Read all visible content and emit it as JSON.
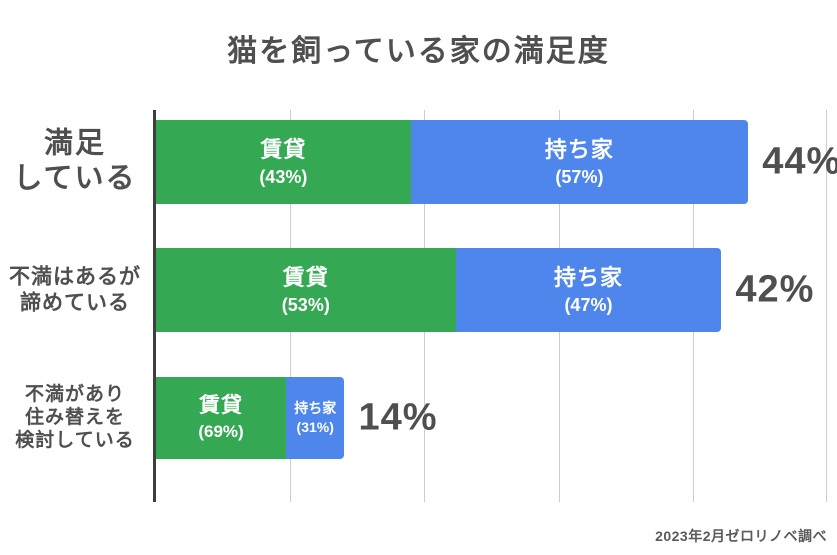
{
  "title": "猫を飼っている家の満足度",
  "source": "2023年2月ゼロリノベ調べ",
  "colors": {
    "rent_green": "#34A853",
    "own_blue": "#4E86EC",
    "text_gray": "#4F4F4F",
    "grid_gray": "#CCCCCC",
    "axis_gray": "#3F3F3F"
  },
  "axis": {
    "max_percent": 50,
    "gridline_interval_percent": 10
  },
  "chart_data": {
    "type": "bar",
    "orientation": "horizontal",
    "stacked": true,
    "title": "猫を飼っている家の満足度",
    "categories": [
      "満足している",
      "不満はあるが諦めている",
      "不満があり住み替えを検討している"
    ],
    "series": [
      {
        "name": "賃貸",
        "values": [
          43,
          53,
          69
        ],
        "color": "#34A853",
        "unit": "% within group"
      },
      {
        "name": "持ち家",
        "values": [
          57,
          47,
          31
        ],
        "color": "#4E86EC",
        "unit": "% within group"
      }
    ],
    "totals_percent": [
      44,
      42,
      14
    ],
    "xlim": [
      0,
      50
    ],
    "grid": true,
    "legend_position": "none",
    "source": "2023年2月ゼロリノベ調べ"
  },
  "rows": [
    {
      "label_lines": {
        "0": "満足",
        "1": "している"
      },
      "total_label": "44%",
      "total_value": 44,
      "segments": [
        {
          "name": "賃貸",
          "pct": "(43%)",
          "share": 43
        },
        {
          "name": "持ち家",
          "pct": "(57%)",
          "share": 57
        }
      ]
    },
    {
      "label_lines": {
        "0": "不満はあるが",
        "1": "諦めている"
      },
      "total_label": "42%",
      "total_value": 42,
      "segments": [
        {
          "name": "賃貸",
          "pct": "(53%)",
          "share": 53
        },
        {
          "name": "持ち家",
          "pct": "(47%)",
          "share": 47
        }
      ]
    },
    {
      "label_lines": {
        "0": "不満があり",
        "1": "住み替えを",
        "2": "検討している"
      },
      "total_label": "14%",
      "total_value": 14,
      "segments": [
        {
          "name": "賃貸",
          "pct": "(69%)",
          "share": 69
        },
        {
          "name": "持ち家",
          "pct": "(31%)",
          "share": 31
        }
      ]
    }
  ]
}
